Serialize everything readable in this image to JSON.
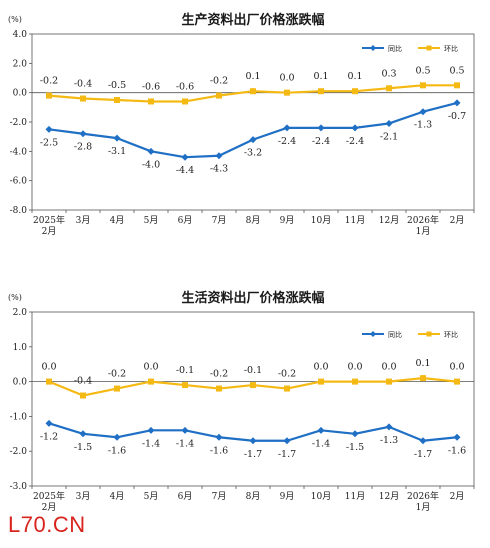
{
  "watermark": "L70.CN",
  "chart_data": [
    {
      "type": "line",
      "title": "生产资料出厂价格涨跌幅",
      "unit": "(%)",
      "ylim": [
        -8.0,
        4.0
      ],
      "yticks": [
        "4.0",
        "2.0",
        "0.0",
        "-2.0",
        "-4.0",
        "-6.0",
        "-8.0"
      ],
      "categories": [
        "2025年|2月",
        "3月",
        "4月",
        "5月",
        "6月",
        "7月",
        "8月",
        "9月",
        "10月",
        "11月",
        "12月",
        "2026年|1月",
        "2月"
      ],
      "legend_position": "top-right",
      "series": [
        {
          "name": "同比",
          "color": "#1f6fc5",
          "values": [
            -2.5,
            -2.8,
            -3.1,
            -4.0,
            -4.4,
            -4.3,
            -3.2,
            -2.4,
            -2.4,
            -2.4,
            -2.1,
            -1.3,
            -0.7
          ],
          "labels": [
            "-2.5",
            "-2.8",
            "-3.1",
            "-4.0",
            "-4.4",
            "-4.3",
            "-3.2",
            "-2.4",
            "-2.4",
            "-2.4",
            "-2.1",
            "-1.3",
            "-0.7"
          ]
        },
        {
          "name": "环比",
          "color": "#f5b914",
          "values": [
            -0.2,
            -0.4,
            -0.5,
            -0.6,
            -0.6,
            -0.2,
            0.1,
            0.0,
            0.1,
            0.1,
            0.3,
            0.5,
            0.5
          ],
          "labels": [
            "-0.2",
            "-0.4",
            "-0.5",
            "-0.6",
            "-0.6",
            "-0.2",
            "0.1",
            "0.0",
            "0.1",
            "0.1",
            "0.3",
            "0.5",
            "0.5"
          ]
        }
      ]
    },
    {
      "type": "line",
      "title": "生活资料出厂价格涨跌幅",
      "unit": "(%)",
      "ylim": [
        -3.0,
        2.0
      ],
      "yticks": [
        "2.0",
        "1.0",
        "0.0",
        "-1.0",
        "-2.0",
        "-3.0"
      ],
      "categories": [
        "2025年|2月",
        "3月",
        "4月",
        "5月",
        "6月",
        "7月",
        "8月",
        "9月",
        "10月",
        "11月",
        "12月",
        "2026年|1月",
        "2月"
      ],
      "legend_position": "top-right",
      "series": [
        {
          "name": "同比",
          "color": "#1f6fc5",
          "values": [
            -1.2,
            -1.5,
            -1.6,
            -1.4,
            -1.4,
            -1.6,
            -1.7,
            -1.7,
            -1.4,
            -1.5,
            -1.3,
            -1.7,
            -1.6
          ],
          "labels": [
            "-1.2",
            "-1.5",
            "-1.6",
            "-1.4",
            "-1.4",
            "-1.6",
            "-1.7",
            "-1.7",
            "-1.4",
            "-1.5",
            "-1.3",
            "-1.7",
            "-1.6"
          ]
        },
        {
          "name": "环比",
          "color": "#f5b914",
          "values": [
            0.0,
            -0.4,
            -0.2,
            0.0,
            -0.1,
            -0.2,
            -0.1,
            -0.2,
            0.0,
            0.0,
            0.0,
            0.1,
            0.0
          ],
          "labels": [
            "0.0",
            "-0.4",
            "-0.2",
            "0.0",
            "-0.1",
            "-0.2",
            "-0.1",
            "-0.2",
            "0.0",
            "0.0",
            "0.0",
            "0.1",
            "0.0"
          ]
        }
      ]
    }
  ]
}
